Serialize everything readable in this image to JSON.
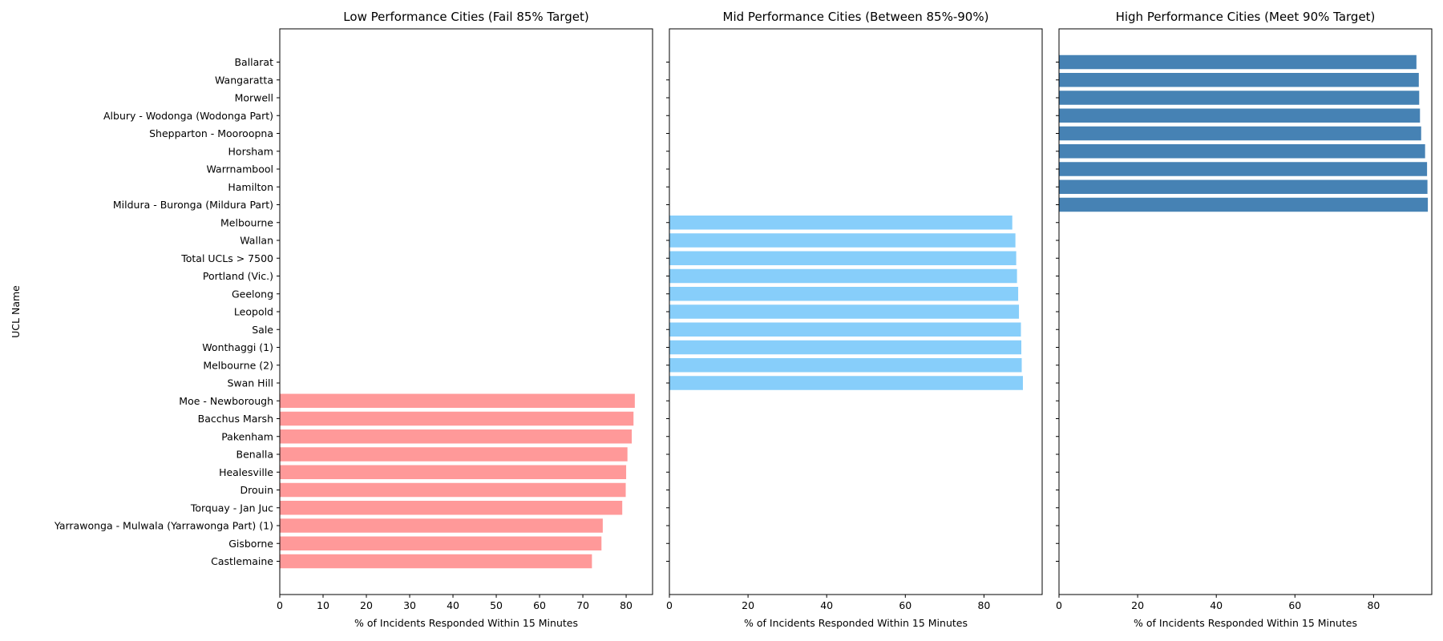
{
  "figure": {
    "ylabel": "UCL Name"
  },
  "chart_data": [
    {
      "type": "bar",
      "orientation": "horizontal",
      "title": "Low Performance Cities (Fail 85% Target)",
      "xlabel": "% of Incidents Responded Within 15 Minutes",
      "ylabel": "UCL Name",
      "xlim": [
        0,
        86.1
      ],
      "xticks": [
        0,
        10,
        20,
        30,
        40,
        50,
        60,
        70,
        80
      ],
      "color": "#ff9999",
      "categories": [
        "Castlemaine",
        "Gisborne",
        "Yarrawonga - Mulwala (Yarrawonga Part) (1)",
        "Torquay - Jan Juc",
        "Drouin",
        "Healesville",
        "Benalla",
        "Pakenham",
        "Bacchus Marsh",
        "Moe - Newborough"
      ],
      "values": [
        72.1,
        74.3,
        74.6,
        79.1,
        79.9,
        80.0,
        80.3,
        81.3,
        81.7,
        82.0
      ]
    },
    {
      "type": "bar",
      "orientation": "horizontal",
      "title": "Mid Performance Cities (Between 85%-90%)",
      "xlabel": "% of Incidents Responded Within 15 Minutes",
      "xlim": [
        0,
        94.8
      ],
      "xticks": [
        0,
        20,
        40,
        60,
        80
      ],
      "color": "#87cefa",
      "categories": [
        "Swan Hill",
        "Melbourne (2)",
        "Wonthaggi (1)",
        "Sale",
        "Leopold",
        "Geelong",
        "Portland (Vic.)",
        "Total UCLs > 7500",
        "Wallan",
        "Melbourne"
      ],
      "values": [
        89.9,
        89.6,
        89.5,
        89.4,
        88.9,
        88.7,
        88.4,
        88.2,
        88.0,
        87.2
      ]
    },
    {
      "type": "bar",
      "orientation": "horizontal",
      "title": "High Performance Cities (Meet 90% Target)",
      "xlabel": "% of Incidents Responded Within 15 Minutes",
      "xlim": [
        0,
        94.8
      ],
      "xticks": [
        0,
        20,
        40,
        60,
        80
      ],
      "color": "#4682b4",
      "categories": [
        "Mildura - Buronga (Mildura Part)",
        "Hamilton",
        "Warrnambool",
        "Horsham",
        "Shepparton - Mooroopna",
        "Albury - Wodonga (Wodonga Part)",
        "Morwell",
        "Wangaratta",
        "Ballarat"
      ],
      "values": [
        90.3,
        90.2,
        90.1,
        89.6,
        88.6,
        88.3,
        88.1,
        88.0,
        87.4
      ],
      "value_offset": 3.5
    }
  ],
  "y_order_bottom_to_top": [
    "Castlemaine",
    "Gisborne",
    "Yarrawonga - Mulwala (Yarrawonga Part) (1)",
    "Torquay - Jan Juc",
    "Drouin",
    "Healesville",
    "Benalla",
    "Pakenham",
    "Bacchus Marsh",
    "Moe - Newborough",
    "Swan Hill",
    "Melbourne (2)",
    "Wonthaggi (1)",
    "Sale",
    "Leopold",
    "Geelong",
    "Portland (Vic.)",
    "Total UCLs > 7500",
    "Wallan",
    "Melbourne",
    "Mildura - Buronga (Mildura Part)",
    "Hamilton",
    "Warrnambool",
    "Horsham",
    "Shepparton - Mooroopna",
    "Albury - Wodonga (Wodonga Part)",
    "Morwell",
    "Wangaratta",
    "Ballarat"
  ]
}
